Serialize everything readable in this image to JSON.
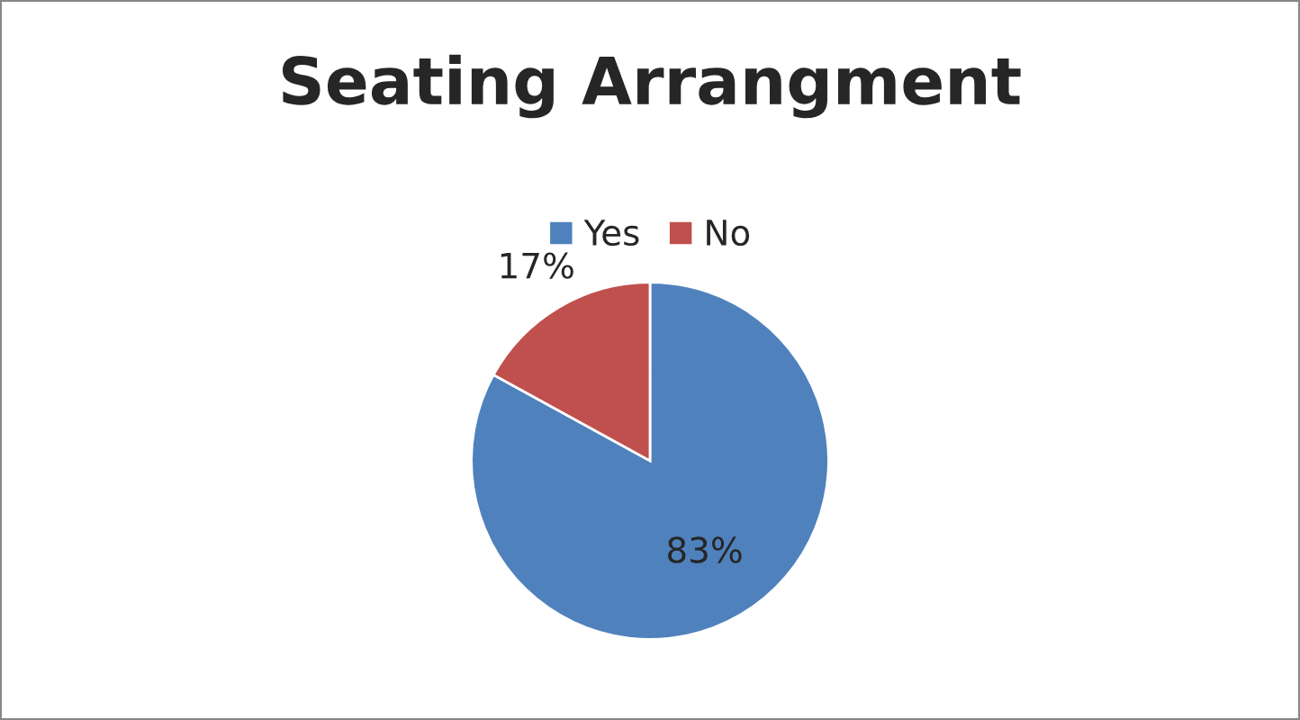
{
  "chart_data": {
    "type": "pie",
    "title": "Seating Arrangment",
    "categories": [
      "Yes",
      "No"
    ],
    "values": [
      83,
      17
    ],
    "colors": [
      "#4f81bd",
      "#c0504d"
    ],
    "value_labels": [
      "83%",
      "17%"
    ],
    "legend": "top"
  }
}
